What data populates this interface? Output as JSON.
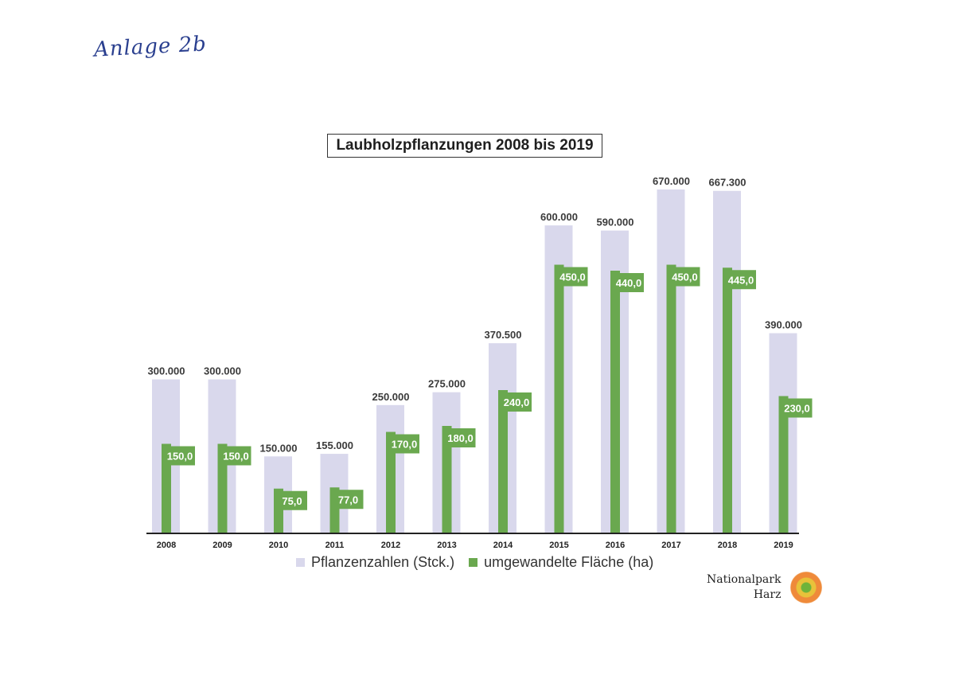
{
  "annotation": "Anlage 2b",
  "logo": {
    "line1": "Nationalpark",
    "line2": "Harz"
  },
  "colors": {
    "plants_bar": "#d9d8ec",
    "area_bar": "#6aa84f",
    "area_label_bg": "#6aa84f",
    "axis": "#222222",
    "value_text": "#3a3a3a"
  },
  "chart_data": {
    "type": "bar",
    "title": "Laubholzpflanzungen 2008 bis 2019",
    "categories": [
      "2008",
      "2009",
      "2010",
      "2011",
      "2012",
      "2013",
      "2014",
      "2015",
      "2016",
      "2017",
      "2018",
      "2019"
    ],
    "series": [
      {
        "name": "Pflanzenzahlen (Stck.)",
        "values": [
          300000,
          300000,
          150000,
          155000,
          250000,
          275000,
          370500,
          600000,
          590000,
          670000,
          667300,
          390000
        ],
        "labels": [
          "300.000",
          "300.000",
          "150.000",
          "155.000",
          "250.000",
          "275.000",
          "370.500",
          "600.000",
          "590.000",
          "670.000",
          "667.300",
          "390.000"
        ]
      },
      {
        "name": "umgewandelte Fläche (ha)",
        "values": [
          150,
          150,
          75,
          77,
          170,
          180,
          240,
          450,
          440,
          450,
          445,
          230
        ],
        "labels": [
          "150,0",
          "150,0",
          "75,0",
          "77,0",
          "170,0",
          "180,0",
          "240,0",
          "450,0",
          "440,0",
          "450,0",
          "445,0",
          "230,0"
        ]
      }
    ],
    "legend_position": "bottom",
    "grid": false
  }
}
